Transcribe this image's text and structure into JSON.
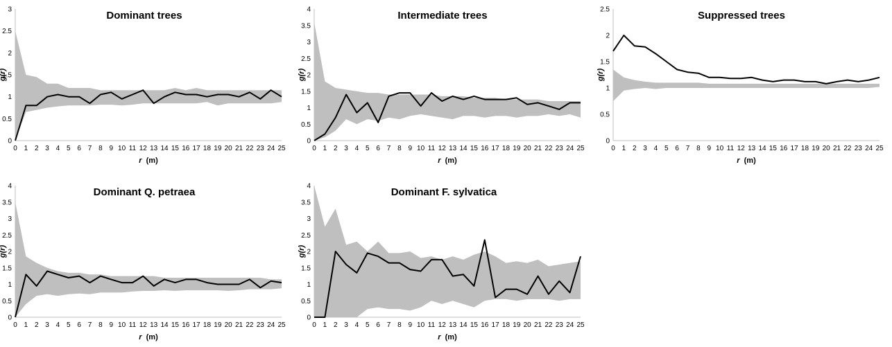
{
  "colors": {
    "envelope": "#bfbfbf",
    "line": "#000000",
    "axis": "#bfbfbf",
    "text": "#000000"
  },
  "chart_data": [
    {
      "type": "area",
      "title": "Dominant trees",
      "xlabel": "r (m)",
      "ylabel": "g(r)",
      "xlim": [
        0,
        25
      ],
      "ylim": [
        0,
        3
      ],
      "yticks": [
        "0",
        "0.5",
        "1",
        "1.5",
        "2",
        "2.5",
        "3"
      ],
      "xticks": [
        "0",
        "1",
        "2",
        "3",
        "4",
        "5",
        "6",
        "7",
        "8",
        "9",
        "10",
        "11",
        "12",
        "13",
        "14",
        "15",
        "16",
        "17",
        "18",
        "19",
        "20",
        "21",
        "22",
        "23",
        "24",
        "25"
      ],
      "x": [
        0,
        1,
        2,
        3,
        4,
        5,
        6,
        7,
        8,
        9,
        10,
        11,
        12,
        13,
        14,
        15,
        16,
        17,
        18,
        19,
        20,
        21,
        22,
        23,
        24,
        25
      ],
      "series": [
        {
          "role": "envelope_upper",
          "values": [
            2.5,
            1.5,
            1.45,
            1.3,
            1.3,
            1.2,
            1.2,
            1.2,
            1.15,
            1.15,
            1.15,
            1.15,
            1.15,
            1.15,
            1.15,
            1.2,
            1.15,
            1.2,
            1.15,
            1.15,
            1.15,
            1.15,
            1.15,
            1.15,
            1.15,
            1.15
          ]
        },
        {
          "role": "envelope_lower",
          "values": [
            0,
            0.65,
            0.7,
            0.75,
            0.78,
            0.8,
            0.8,
            0.8,
            0.82,
            0.82,
            0.8,
            0.82,
            0.85,
            0.85,
            0.85,
            0.85,
            0.85,
            0.85,
            0.88,
            0.8,
            0.85,
            0.85,
            0.85,
            0.85,
            0.85,
            0.88
          ]
        },
        {
          "role": "observed",
          "values": [
            0,
            0.8,
            0.8,
            1.0,
            1.05,
            1.0,
            1.0,
            0.85,
            1.05,
            1.1,
            0.95,
            1.05,
            1.15,
            0.85,
            1.0,
            1.1,
            1.05,
            1.05,
            1.0,
            1.05,
            1.05,
            1.0,
            1.1,
            0.95,
            1.15,
            1.0
          ]
        }
      ]
    },
    {
      "type": "area",
      "title": "Intermediate trees",
      "xlabel": "r (m)",
      "ylabel": "g(r)",
      "xlim": [
        0,
        25
      ],
      "ylim": [
        0,
        4
      ],
      "yticks": [
        "0",
        "0.5",
        "1",
        "1.5",
        "2",
        "2.5",
        "3",
        "3.5",
        "4"
      ],
      "xticks": [
        "0",
        "1",
        "2",
        "3",
        "4",
        "5",
        "6",
        "7",
        "8",
        "9",
        "10",
        "11",
        "12",
        "13",
        "14",
        "15",
        "16",
        "17",
        "18",
        "19",
        "20",
        "21",
        "22",
        "23",
        "24",
        "25"
      ],
      "x": [
        0,
        1,
        2,
        3,
        4,
        5,
        6,
        7,
        8,
        9,
        10,
        11,
        12,
        13,
        14,
        15,
        16,
        17,
        18,
        19,
        20,
        21,
        22,
        23,
        24,
        25
      ],
      "series": [
        {
          "role": "envelope_upper",
          "values": [
            3.6,
            1.8,
            1.6,
            1.55,
            1.5,
            1.45,
            1.45,
            1.4,
            1.4,
            1.4,
            1.4,
            1.4,
            1.35,
            1.35,
            1.35,
            1.3,
            1.3,
            1.3,
            1.25,
            1.25,
            1.25,
            1.25,
            1.2,
            1.2,
            1.2,
            1.2
          ]
        },
        {
          "role": "envelope_lower",
          "values": [
            0,
            0.1,
            0.3,
            0.65,
            0.5,
            0.65,
            0.6,
            0.7,
            0.65,
            0.75,
            0.8,
            0.75,
            0.7,
            0.65,
            0.75,
            0.75,
            0.7,
            0.75,
            0.75,
            0.7,
            0.75,
            0.75,
            0.8,
            0.75,
            0.8,
            0.7
          ]
        },
        {
          "role": "observed",
          "values": [
            0,
            0.2,
            0.7,
            1.4,
            0.85,
            1.15,
            0.55,
            1.35,
            1.45,
            1.45,
            1.05,
            1.45,
            1.2,
            1.35,
            1.25,
            1.35,
            1.25,
            1.25,
            1.25,
            1.3,
            1.1,
            1.15,
            1.05,
            0.95,
            1.15,
            1.15
          ]
        }
      ]
    },
    {
      "type": "area",
      "title": "Suppressed trees",
      "xlabel": "r (m)",
      "ylabel": "g(r)",
      "xlim": [
        0,
        25
      ],
      "ylim": [
        0,
        2.5
      ],
      "yticks": [
        "0",
        "0.5",
        "1",
        "1.5",
        "2",
        "2.5"
      ],
      "xticks": [
        "0",
        "1",
        "2",
        "3",
        "4",
        "5",
        "6",
        "7",
        "8",
        "9",
        "10",
        "11",
        "12",
        "13",
        "14",
        "15",
        "16",
        "17",
        "18",
        "19",
        "20",
        "21",
        "22",
        "23",
        "24",
        "25"
      ],
      "x": [
        0,
        1,
        2,
        3,
        4,
        5,
        6,
        7,
        8,
        9,
        10,
        11,
        12,
        13,
        14,
        15,
        16,
        17,
        18,
        19,
        20,
        21,
        22,
        23,
        24,
        25
      ],
      "series": [
        {
          "role": "envelope_upper",
          "values": [
            1.35,
            1.2,
            1.15,
            1.12,
            1.1,
            1.1,
            1.1,
            1.1,
            1.1,
            1.08,
            1.08,
            1.08,
            1.08,
            1.08,
            1.08,
            1.08,
            1.08,
            1.08,
            1.08,
            1.08,
            1.08,
            1.08,
            1.08,
            1.08,
            1.08,
            1.08
          ]
        },
        {
          "role": "envelope_lower",
          "values": [
            0.75,
            0.95,
            0.98,
            1.0,
            0.98,
            1.0,
            1.0,
            1.0,
            1.0,
            1.0,
            1.0,
            1.0,
            1.0,
            1.0,
            1.0,
            1.0,
            1.0,
            1.0,
            1.0,
            1.0,
            1.0,
            1.0,
            1.0,
            1.0,
            1.0,
            1.02
          ]
        },
        {
          "role": "observed",
          "values": [
            1.7,
            2.0,
            1.8,
            1.78,
            1.65,
            1.5,
            1.35,
            1.3,
            1.28,
            1.2,
            1.2,
            1.18,
            1.18,
            1.2,
            1.15,
            1.12,
            1.15,
            1.15,
            1.12,
            1.12,
            1.08,
            1.12,
            1.15,
            1.12,
            1.15,
            1.2
          ]
        }
      ]
    },
    {
      "type": "area",
      "title": "Dominant Q. petraea",
      "xlabel": "r (m)",
      "ylabel": "g(r)",
      "xlim": [
        0,
        25
      ],
      "ylim": [
        0,
        4
      ],
      "yticks": [
        "0",
        "0.5",
        "1",
        "1.5",
        "2",
        "2.5",
        "3",
        "3.5",
        "4"
      ],
      "xticks": [
        "0",
        "1",
        "2",
        "3",
        "4",
        "5",
        "6",
        "7",
        "8",
        "9",
        "10",
        "11",
        "12",
        "13",
        "14",
        "15",
        "16",
        "17",
        "18",
        "19",
        "20",
        "21",
        "22",
        "23",
        "24",
        "25"
      ],
      "x": [
        0,
        1,
        2,
        3,
        4,
        5,
        6,
        7,
        8,
        9,
        10,
        11,
        12,
        13,
        14,
        15,
        16,
        17,
        18,
        19,
        20,
        21,
        22,
        23,
        24,
        25
      ],
      "series": [
        {
          "role": "envelope_upper",
          "values": [
            3.5,
            1.85,
            1.65,
            1.5,
            1.4,
            1.35,
            1.35,
            1.3,
            1.3,
            1.25,
            1.25,
            1.25,
            1.25,
            1.25,
            1.2,
            1.2,
            1.2,
            1.2,
            1.2,
            1.2,
            1.2,
            1.2,
            1.2,
            1.2,
            1.15,
            1.15
          ]
        },
        {
          "role": "envelope_lower",
          "values": [
            0,
            0.4,
            0.65,
            0.7,
            0.65,
            0.7,
            0.72,
            0.7,
            0.75,
            0.75,
            0.75,
            0.78,
            0.8,
            0.8,
            0.82,
            0.8,
            0.82,
            0.82,
            0.82,
            0.82,
            0.8,
            0.82,
            0.85,
            0.85,
            0.85,
            0.88
          ]
        },
        {
          "role": "observed",
          "values": [
            0,
            1.3,
            0.95,
            1.4,
            1.3,
            1.2,
            1.25,
            1.05,
            1.25,
            1.15,
            1.05,
            1.05,
            1.25,
            0.95,
            1.15,
            1.05,
            1.15,
            1.15,
            1.05,
            1.0,
            1.0,
            1.0,
            1.15,
            0.9,
            1.1,
            1.05
          ]
        }
      ]
    },
    {
      "type": "area",
      "title": "Dominant F. sylvatica",
      "xlabel": "r (m)",
      "ylabel": "g(r)",
      "xlim": [
        0,
        25
      ],
      "ylim": [
        0,
        4
      ],
      "yticks": [
        "0",
        "0.5",
        "1",
        "1.5",
        "2",
        "2.5",
        "3",
        "3.5",
        "4"
      ],
      "xticks": [
        "0",
        "1",
        "2",
        "3",
        "4",
        "5",
        "6",
        "7",
        "8",
        "9",
        "10",
        "11",
        "12",
        "13",
        "14",
        "15",
        "16",
        "17",
        "18",
        "19",
        "20",
        "21",
        "22",
        "23",
        "24",
        "25"
      ],
      "x": [
        0,
        1,
        2,
        3,
        4,
        5,
        6,
        7,
        8,
        9,
        10,
        11,
        12,
        13,
        14,
        15,
        16,
        17,
        18,
        19,
        20,
        21,
        22,
        23,
        24,
        25
      ],
      "series": [
        {
          "role": "envelope_upper",
          "values": [
            4.0,
            2.75,
            3.3,
            2.2,
            2.3,
            2.0,
            2.3,
            1.95,
            1.95,
            2.0,
            1.8,
            1.85,
            1.75,
            1.85,
            1.75,
            1.9,
            2.0,
            1.85,
            1.65,
            1.7,
            1.65,
            1.75,
            1.55,
            1.6,
            1.65,
            1.7
          ]
        },
        {
          "role": "envelope_lower",
          "values": [
            0,
            0,
            0,
            0,
            0,
            0.25,
            0.3,
            0.25,
            0.25,
            0.2,
            0.3,
            0.5,
            0.4,
            0.5,
            0.4,
            0.3,
            0.5,
            0.55,
            0.55,
            0.5,
            0.55,
            0.55,
            0.55,
            0.5,
            0.55,
            0.55
          ]
        },
        {
          "role": "observed",
          "values": [
            0,
            0,
            2.0,
            1.6,
            1.35,
            1.95,
            1.85,
            1.65,
            1.65,
            1.45,
            1.4,
            1.75,
            1.75,
            1.25,
            1.3,
            0.95,
            2.35,
            0.6,
            0.85,
            0.85,
            0.7,
            1.25,
            0.7,
            1.1,
            0.75,
            1.85
          ]
        }
      ]
    }
  ]
}
